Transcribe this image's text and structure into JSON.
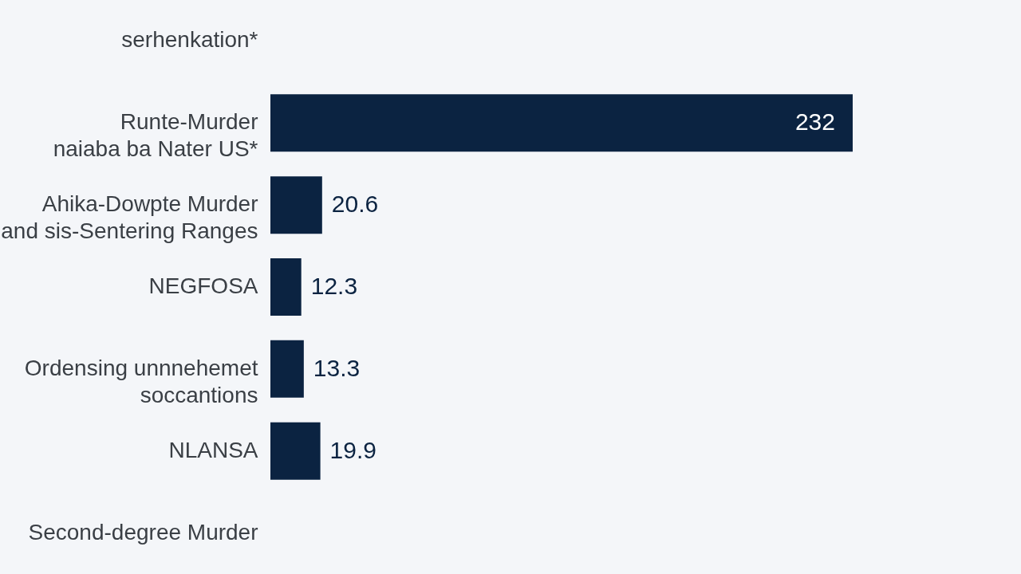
{
  "chart_data": {
    "type": "bar",
    "orientation": "horizontal",
    "data_labels": true,
    "categories": [
      "serhenkation*",
      "Runte-Murder\nnaiaba ba Nater US*",
      "Ahika-Dowpte Murder\nand sis-Sentering Ranges",
      "NEGFOSA",
      "Ordensing unnnehemet\nsoccantions",
      "NLANSA",
      "Second-degree Murder"
    ],
    "values": [
      null,
      232,
      20.6,
      12.3,
      13.3,
      19.9,
      null
    ],
    "color": "#0b2341"
  }
}
